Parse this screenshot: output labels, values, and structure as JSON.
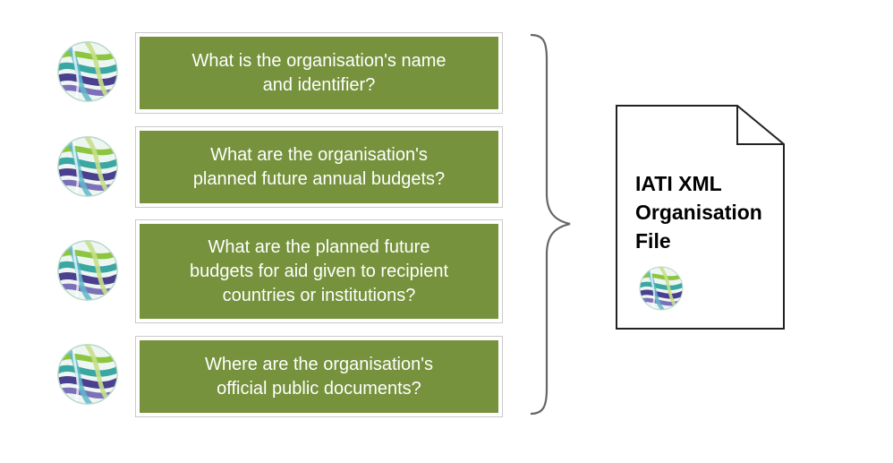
{
  "questions": [
    {
      "text": "What is the organisation's name\nand identifier?"
    },
    {
      "text": "What are the organisation's\nplanned future annual budgets?"
    },
    {
      "text": "What are the planned future\nbudgets for aid given to recipient\ncountries or institutions?"
    },
    {
      "text": "Where are the organisation's\nofficial public documents?"
    }
  ],
  "document": {
    "title": "IATI XML\nOrganisation\nFile"
  },
  "icons": {
    "question_logo": "iati-globe-logo-icon",
    "document_logo": "iati-globe-logo-icon"
  },
  "colors": {
    "question_fill": "#76923c",
    "question_text": "#ffffff",
    "logo_teal": "#3aa7a3",
    "logo_purple": "#4b3f8f",
    "logo_green": "#8cc63f"
  }
}
